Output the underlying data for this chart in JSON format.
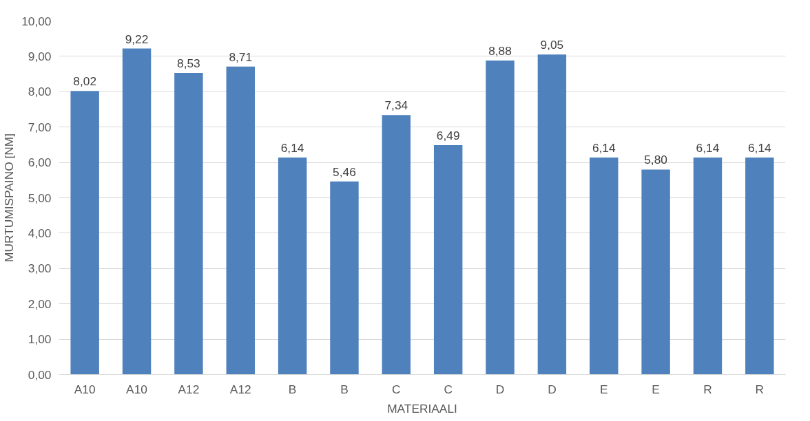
{
  "chart_data": {
    "type": "bar",
    "xlabel": "MATERIAALI",
    "ylabel": "MURTUMISPAINO [NM]",
    "categories": [
      "A10",
      "A10",
      "A12",
      "A12",
      "B",
      "B",
      "C",
      "C",
      "D",
      "D",
      "E",
      "E",
      "R",
      "R"
    ],
    "values": [
      8.02,
      9.22,
      8.53,
      8.71,
      6.14,
      5.46,
      7.34,
      6.49,
      8.88,
      9.05,
      6.14,
      5.8,
      6.14,
      6.14
    ],
    "value_labels": [
      "8,02",
      "9,22",
      "8,53",
      "8,71",
      "6,14",
      "5,46",
      "7,34",
      "6,49",
      "8,88",
      "9,05",
      "6,14",
      "5,80",
      "6,14",
      "6,14"
    ],
    "color": "#4f81bd",
    "ylim": [
      0,
      10
    ],
    "yticks": [
      {
        "value": 0,
        "label": "0,00"
      },
      {
        "value": 1,
        "label": "1,00"
      },
      {
        "value": 2,
        "label": "2,00"
      },
      {
        "value": 3,
        "label": "3,00"
      },
      {
        "value": 4,
        "label": "4,00"
      },
      {
        "value": 5,
        "label": "5,00"
      },
      {
        "value": 6,
        "label": "6,00"
      },
      {
        "value": 7,
        "label": "7,00"
      },
      {
        "value": 8,
        "label": "8,00"
      },
      {
        "value": 9,
        "label": "9,00"
      },
      {
        "value": 10,
        "label": "10,00"
      }
    ],
    "grid": "y"
  }
}
